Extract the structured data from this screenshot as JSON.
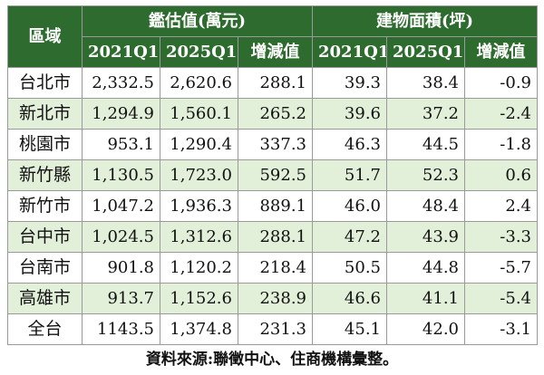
{
  "table": {
    "region_header": "區域",
    "group_headers": [
      "鑑估值(萬元)",
      "建物面積(坪)"
    ],
    "sub_headers": [
      "2021Q1",
      "2025Q1",
      "增減值",
      "2021Q1",
      "2025Q1",
      "增減值"
    ],
    "rows": [
      {
        "region": "台北市",
        "cells": [
          "2,332.5",
          "2,620.6",
          "288.1",
          "39.3",
          "38.4",
          "-0.9"
        ]
      },
      {
        "region": "新北市",
        "cells": [
          "1,294.9",
          "1,560.1",
          "265.2",
          "39.6",
          "37.2",
          "-2.4"
        ]
      },
      {
        "region": "桃園市",
        "cells": [
          "953.1",
          "1,290.4",
          "337.3",
          "46.3",
          "44.5",
          "-1.8"
        ]
      },
      {
        "region": "新竹縣",
        "cells": [
          "1,130.5",
          "1,723.0",
          "592.5",
          "51.7",
          "52.3",
          "0.6"
        ]
      },
      {
        "region": "新竹市",
        "cells": [
          "1,047.2",
          "1,936.3",
          "889.1",
          "46.0",
          "48.4",
          "2.4"
        ]
      },
      {
        "region": "台中市",
        "cells": [
          "1,024.5",
          "1,312.6",
          "288.1",
          "47.2",
          "43.9",
          "-3.3"
        ]
      },
      {
        "region": "台南市",
        "cells": [
          "901.8",
          "1,120.2",
          "218.4",
          "50.5",
          "44.8",
          "-5.7"
        ]
      },
      {
        "region": "高雄市",
        "cells": [
          "913.7",
          "1,152.6",
          "238.9",
          "46.6",
          "41.1",
          "-5.4"
        ]
      },
      {
        "region": "全台",
        "cells": [
          "1143.5",
          "1,374.8",
          "231.3",
          "45.1",
          "42.0",
          "-3.1"
        ]
      }
    ]
  },
  "source": "資料來源:聯徵中心、住商機構彙整。",
  "colors": {
    "header_bg": "#2e6b2e",
    "header_text": "#ffffff",
    "alt_row_bg": "#e2efd9",
    "row_bg": "#ffffff",
    "border": "#9a9a9a"
  }
}
